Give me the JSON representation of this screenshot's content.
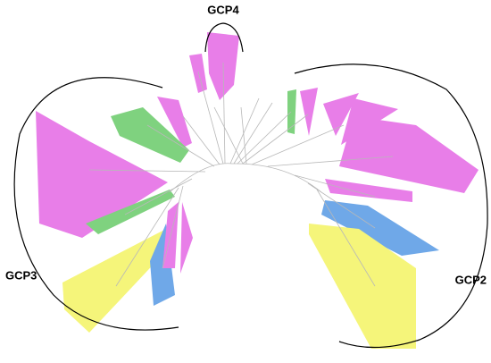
{
  "labels": {
    "gcp4": "GCP4",
    "gcp3": "GCP3",
    "gcp2": "GCP2"
  }
}
